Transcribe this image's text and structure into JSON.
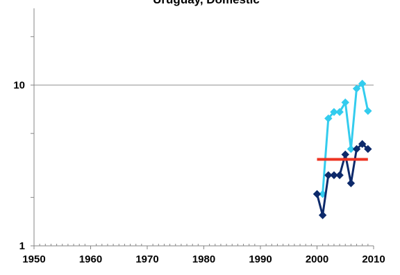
{
  "chart_data": {
    "type": "line",
    "title": "Uruguay, Domestic",
    "xlabel": "",
    "ylabel": "",
    "xlim": [
      1950,
      2010
    ],
    "ylim": [
      1,
      30
    ],
    "y_scale": "log",
    "x_ticks": [
      1950,
      1960,
      1970,
      1980,
      1990,
      2000,
      2010
    ],
    "x_tick_labels": [
      "1950",
      "1960",
      "1970",
      "1980",
      "1990",
      "2000",
      "2010"
    ],
    "y_ticks": [
      1,
      10
    ],
    "y_tick_labels": [
      "1",
      "10"
    ],
    "grid": "horizontal major",
    "legend": "none",
    "series": [
      {
        "color": "#33CCEE",
        "marker": "diamond",
        "x": [
          2000,
          2001,
          2002,
          2003,
          2004,
          2005,
          2006,
          2007,
          2008,
          2009
        ],
        "y": [
          2.1,
          2.1,
          6.2,
          6.8,
          6.8,
          7.8,
          4.0,
          9.5,
          10.2,
          6.9
        ]
      },
      {
        "color": "#0D2A6B",
        "marker": "diamond",
        "x": [
          2000,
          2001,
          2002,
          2003,
          2004,
          2005,
          2006,
          2007,
          2008,
          2009
        ],
        "y": [
          2.1,
          1.55,
          2.75,
          2.75,
          2.75,
          3.7,
          2.45,
          4.0,
          4.3,
          4.0
        ]
      },
      {
        "color": "#EE3322",
        "marker": "none",
        "x": [
          2000,
          2001,
          2002,
          2003,
          2004,
          2005,
          2006,
          2007,
          2008,
          2009
        ],
        "y": [
          3.45,
          3.45,
          3.45,
          3.45,
          3.45,
          3.45,
          3.45,
          3.45,
          3.45,
          3.45
        ]
      }
    ],
    "colors": {
      "gridline": "#A6A6A6",
      "axis": "#868686"
    }
  }
}
